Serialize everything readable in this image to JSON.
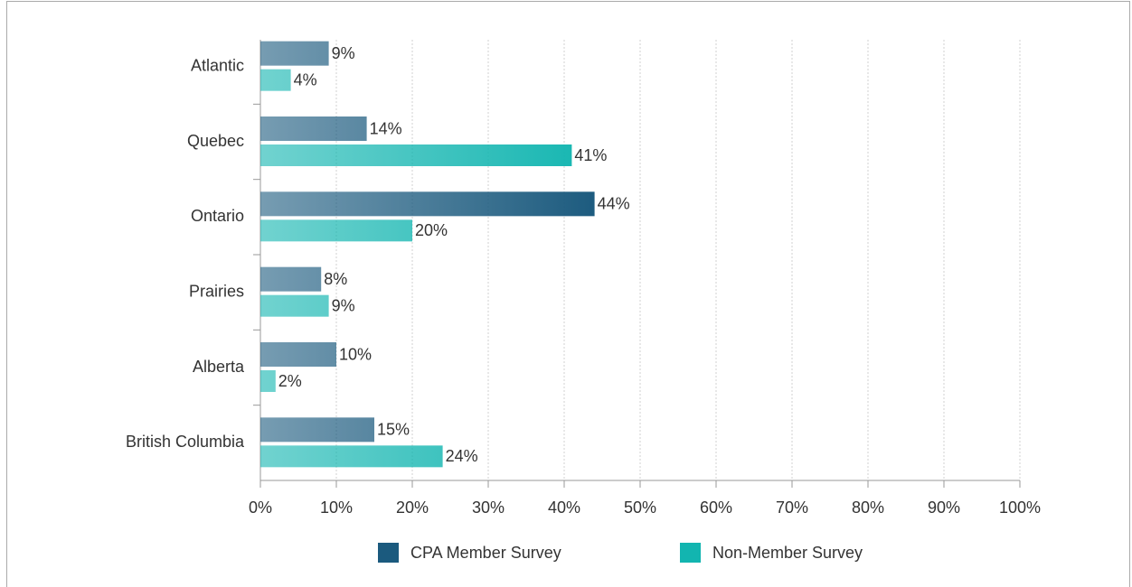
{
  "chart_data": {
    "type": "bar",
    "orientation": "horizontal",
    "categories": [
      "Atlantic",
      "Quebec",
      "Ontario",
      "Prairies",
      "Alberta",
      "British Columbia"
    ],
    "series": [
      {
        "name": "CPA Member Survey",
        "color": "#1b5a7e",
        "values": [
          9,
          14,
          44,
          8,
          10,
          15
        ],
        "value_labels": [
          "9%",
          "14%",
          "44%",
          "8%",
          "10%",
          "15%"
        ]
      },
      {
        "name": "Non-Member Survey",
        "color": "#12b5b0",
        "values": [
          4,
          41,
          20,
          9,
          2,
          24
        ],
        "value_labels": [
          "4%",
          "41%",
          "20%",
          "9%",
          "2%",
          "24%"
        ]
      }
    ],
    "xlim": [
      0,
      100
    ],
    "xticks": [
      {
        "value": 0,
        "label": "0%"
      },
      {
        "value": 10,
        "label": "10%"
      },
      {
        "value": 20,
        "label": "20%"
      },
      {
        "value": 30,
        "label": "30%"
      },
      {
        "value": 40,
        "label": "40%"
      },
      {
        "value": 50,
        "label": "50%"
      },
      {
        "value": 60,
        "label": "60%"
      },
      {
        "value": 70,
        "label": "70%"
      },
      {
        "value": 80,
        "label": "80%"
      },
      {
        "value": 90,
        "label": "90%"
      },
      {
        "value": 100,
        "label": "100%"
      }
    ],
    "grid": true,
    "legend": "bottom"
  }
}
